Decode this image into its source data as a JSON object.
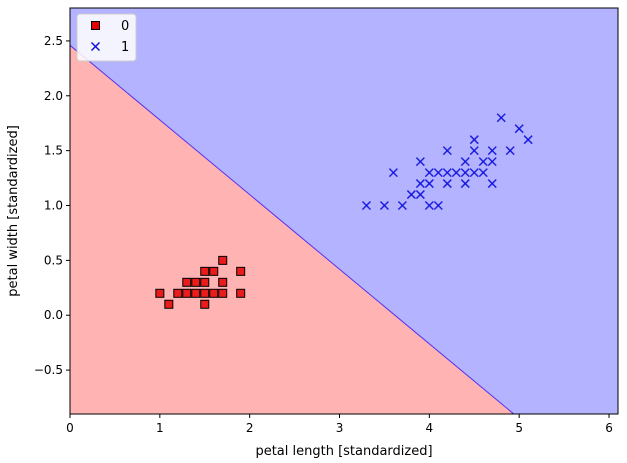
{
  "chart_data": {
    "type": "scatter",
    "title": "",
    "xlabel": "petal length [standardized]",
    "ylabel": "petal width [standardized]",
    "xlim": [
      0,
      6.1
    ],
    "ylim": [
      -0.9,
      2.8
    ],
    "x_ticks": [
      0,
      1,
      2,
      3,
      4,
      5,
      6
    ],
    "y_ticks": [
      -0.5,
      0.0,
      0.5,
      1.0,
      1.5,
      2.0,
      2.5
    ],
    "x_tick_labels": [
      "0",
      "1",
      "2",
      "3",
      "4",
      "5",
      "6"
    ],
    "y_tick_labels": [
      "−0.5",
      "0.0",
      "0.5",
      "1.0",
      "1.5",
      "2.0",
      "2.5"
    ],
    "grid": false,
    "legend_position": "upper-left",
    "decision_boundary": {
      "points": [
        [
          0,
          2.46
        ],
        [
          4.94,
          -0.9
        ]
      ],
      "region_colors": {
        "0": "#ffb3b3",
        "1": "#b3b3ff"
      },
      "line_color": "#5533ee"
    },
    "series": [
      {
        "name": "0",
        "marker": "square",
        "color": "#e60000",
        "edge_color": "#000000",
        "points": [
          [
            1.0,
            0.2
          ],
          [
            1.1,
            0.1
          ],
          [
            1.2,
            0.2
          ],
          [
            1.3,
            0.2
          ],
          [
            1.3,
            0.3
          ],
          [
            1.4,
            0.2
          ],
          [
            1.4,
            0.3
          ],
          [
            1.5,
            0.1
          ],
          [
            1.5,
            0.2
          ],
          [
            1.5,
            0.3
          ],
          [
            1.5,
            0.4
          ],
          [
            1.6,
            0.2
          ],
          [
            1.6,
            0.4
          ],
          [
            1.7,
            0.2
          ],
          [
            1.7,
            0.3
          ],
          [
            1.7,
            0.5
          ],
          [
            1.9,
            0.2
          ],
          [
            1.9,
            0.4
          ]
        ]
      },
      {
        "name": "1",
        "marker": "x",
        "color": "#1010dd",
        "points": [
          [
            3.3,
            1.0
          ],
          [
            3.5,
            1.0
          ],
          [
            3.6,
            1.3
          ],
          [
            3.7,
            1.0
          ],
          [
            3.8,
            1.1
          ],
          [
            3.9,
            1.1
          ],
          [
            3.9,
            1.2
          ],
          [
            3.9,
            1.4
          ],
          [
            4.0,
            1.0
          ],
          [
            4.0,
            1.2
          ],
          [
            4.0,
            1.3
          ],
          [
            4.1,
            1.0
          ],
          [
            4.1,
            1.3
          ],
          [
            4.2,
            1.2
          ],
          [
            4.2,
            1.3
          ],
          [
            4.2,
            1.5
          ],
          [
            4.3,
            1.3
          ],
          [
            4.4,
            1.2
          ],
          [
            4.4,
            1.3
          ],
          [
            4.4,
            1.4
          ],
          [
            4.5,
            1.3
          ],
          [
            4.5,
            1.5
          ],
          [
            4.5,
            1.6
          ],
          [
            4.6,
            1.3
          ],
          [
            4.6,
            1.4
          ],
          [
            4.7,
            1.2
          ],
          [
            4.7,
            1.4
          ],
          [
            4.7,
            1.5
          ],
          [
            4.8,
            1.8
          ],
          [
            4.9,
            1.5
          ],
          [
            5.0,
            1.7
          ],
          [
            5.1,
            1.6
          ]
        ]
      }
    ]
  }
}
